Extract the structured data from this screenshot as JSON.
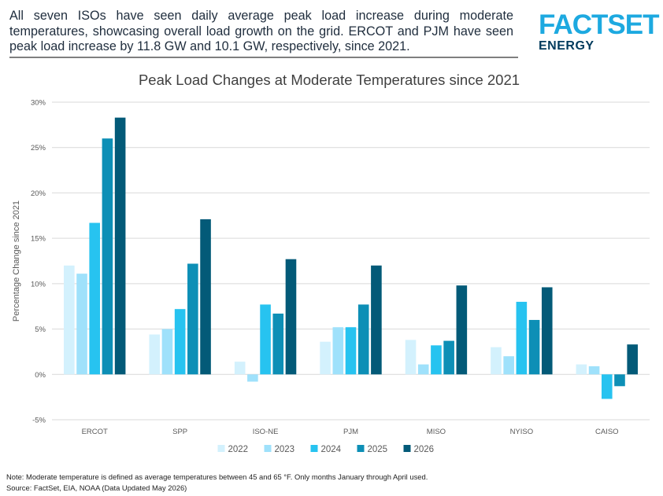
{
  "headline": "All seven ISOs have seen daily average peak load increase during moderate temperatures, showcasing overall load growth on the grid. ERCOT and PJM have seen peak load increase by 11.8 GW and 10.1 GW, respectively, since 2021.",
  "logo": {
    "main": "FACTSET",
    "sub": "ENERGY"
  },
  "colors": {
    "s2022": "#d3f1fd",
    "s2023": "#9fe1fb",
    "s2024": "#27c3f0",
    "s2025": "#0d8fb6",
    "s2026": "#035a78"
  },
  "chart_data": {
    "type": "bar",
    "title": "Peak Load Changes at Moderate Temperatures since 2021",
    "ylabel": "Percentage Change since 2021",
    "xlabel": "",
    "categories": [
      "ERCOT",
      "SPP",
      "ISO-NE",
      "PJM",
      "MISO",
      "NYISO",
      "CAISO"
    ],
    "ylim": [
      -5,
      30
    ],
    "yticks": [
      "-5%",
      "0%",
      "5%",
      "10%",
      "15%",
      "20%",
      "25%",
      "30%"
    ],
    "grid": true,
    "legend_position": "bottom",
    "series": [
      {
        "name": "2022",
        "color": "#d3f1fd",
        "values": [
          12.0,
          4.4,
          1.4,
          3.6,
          3.8,
          3.0,
          1.1
        ]
      },
      {
        "name": "2023",
        "color": "#9fe1fb",
        "values": [
          11.1,
          5.0,
          -0.8,
          5.2,
          1.1,
          2.0,
          0.9
        ]
      },
      {
        "name": "2024",
        "color": "#27c3f0",
        "values": [
          16.7,
          7.2,
          7.7,
          5.2,
          3.2,
          8.0,
          -2.7
        ]
      },
      {
        "name": "2025",
        "color": "#0d8fb6",
        "values": [
          26.0,
          12.2,
          6.7,
          7.7,
          3.7,
          6.0,
          -1.3
        ]
      },
      {
        "name": "2026",
        "color": "#035a78",
        "values": [
          28.3,
          17.1,
          12.7,
          12.0,
          9.8,
          9.6,
          3.3
        ]
      }
    ]
  },
  "notes": {
    "line1": "Note: Moderate temperature is defined as average temperatures between 45 and 65 °F. Only months January through April used.",
    "line2": "Source: FactSet, EIA, NOAA (Data Updated May 2026)"
  }
}
